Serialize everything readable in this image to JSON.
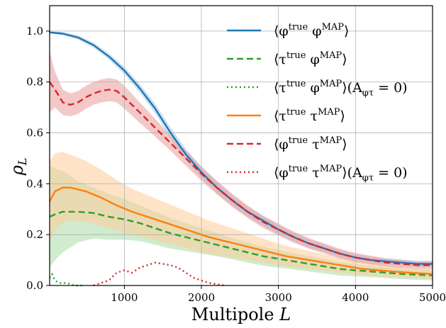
{
  "chart_data": {
    "type": "line",
    "xlabel": "Multipole L",
    "xlabel_main": "Multipole ",
    "xlabel_var": "L",
    "ylabel": "ρ_L",
    "ylabel_main": "ρ",
    "ylabel_sub": "L",
    "xlim": [
      30,
      5000
    ],
    "ylim": [
      0.0,
      1.1
    ],
    "xticks": [
      1000,
      2000,
      3000,
      4000,
      5000
    ],
    "xtick_labels": [
      "1000",
      "2000",
      "3000",
      "4000",
      "5000"
    ],
    "yticks": [
      0.0,
      0.2,
      0.4,
      0.6,
      0.8,
      1.0
    ],
    "ytick_labels": [
      "0.0",
      "0.2",
      "0.4",
      "0.6",
      "0.8",
      "1.0"
    ],
    "grid": true,
    "legend_position": "top-right",
    "series": [
      {
        "name": "⟨φ^true φ^MAP⟩",
        "color": "#1f77b4",
        "style": "solid",
        "band_color": "#a6c8e6",
        "x": [
          30,
          200,
          400,
          600,
          800,
          1000,
          1200,
          1400,
          1600,
          1800,
          2000,
          2200,
          2400,
          2600,
          2800,
          3000,
          3200,
          3400,
          3600,
          3800,
          4000,
          4200,
          4400,
          4600,
          4800,
          5000
        ],
        "y": [
          0.995,
          0.99,
          0.975,
          0.945,
          0.9,
          0.845,
          0.775,
          0.695,
          0.6,
          0.515,
          0.445,
          0.385,
          0.335,
          0.29,
          0.255,
          0.22,
          0.19,
          0.165,
          0.145,
          0.125,
          0.11,
          0.1,
          0.095,
          0.09,
          0.085,
          0.085
        ],
        "band_half_width": [
          0.004,
          0.006,
          0.008,
          0.01,
          0.012,
          0.015,
          0.017,
          0.019,
          0.021,
          0.022,
          0.022,
          0.022,
          0.021,
          0.02,
          0.019,
          0.018,
          0.017,
          0.016,
          0.015,
          0.014,
          0.013,
          0.013,
          0.012,
          0.012,
          0.012,
          0.012
        ]
      },
      {
        "name": "⟨τ^true φ^MAP⟩",
        "color": "#2ca02c",
        "style": "dashed",
        "band_color": "#a8dda8",
        "x": [
          30,
          100,
          200,
          400,
          600,
          800,
          1000,
          1200,
          1400,
          1600,
          1800,
          2000,
          2200,
          2400,
          2600,
          2800,
          3000,
          3200,
          3400,
          3600,
          3800,
          4000,
          4200,
          4400,
          4600,
          4800,
          5000
        ],
        "y": [
          0.27,
          0.28,
          0.29,
          0.29,
          0.285,
          0.27,
          0.26,
          0.245,
          0.225,
          0.205,
          0.19,
          0.175,
          0.16,
          0.145,
          0.13,
          0.115,
          0.105,
          0.095,
          0.085,
          0.075,
          0.065,
          0.06,
          0.055,
          0.05,
          0.045,
          0.042,
          0.04
        ],
        "band_half_width": [
          0.2,
          0.18,
          0.16,
          0.12,
          0.1,
          0.09,
          0.08,
          0.07,
          0.065,
          0.06,
          0.055,
          0.05,
          0.045,
          0.042,
          0.04,
          0.037,
          0.035,
          0.032,
          0.03,
          0.028,
          0.026,
          0.024,
          0.022,
          0.021,
          0.02,
          0.02,
          0.02
        ]
      },
      {
        "name": "⟨τ^true φ^MAP⟩(A_φτ = 0)",
        "color": "#2ca02c",
        "style": "dotted",
        "band_color": "none",
        "x": [
          30,
          60,
          100,
          150,
          250,
          350,
          450
        ],
        "y": [
          0.03,
          0.045,
          0.02,
          0.01,
          0.01,
          0.0,
          0.0
        ],
        "band_half_width": []
      },
      {
        "name": "⟨τ^true τ^MAP⟩",
        "color": "#ff7f0e",
        "style": "solid",
        "band_color": "#ffcc99",
        "x": [
          30,
          100,
          200,
          300,
          500,
          700,
          900,
          1100,
          1300,
          1500,
          1700,
          1900,
          2100,
          2300,
          2500,
          2700,
          2900,
          3100,
          3300,
          3500,
          3700,
          3900,
          4100,
          4300,
          4500,
          4700,
          5000
        ],
        "y": [
          0.33,
          0.37,
          0.385,
          0.385,
          0.37,
          0.345,
          0.315,
          0.29,
          0.27,
          0.25,
          0.23,
          0.21,
          0.19,
          0.175,
          0.16,
          0.145,
          0.13,
          0.115,
          0.105,
          0.095,
          0.085,
          0.075,
          0.065,
          0.06,
          0.055,
          0.05,
          0.045
        ],
        "band_half_width": [
          0.16,
          0.15,
          0.14,
          0.13,
          0.12,
          0.11,
          0.1,
          0.09,
          0.085,
          0.08,
          0.075,
          0.07,
          0.065,
          0.06,
          0.055,
          0.05,
          0.045,
          0.04,
          0.037,
          0.034,
          0.031,
          0.028,
          0.026,
          0.024,
          0.022,
          0.02,
          0.02
        ]
      },
      {
        "name": "⟨φ^true τ^MAP⟩",
        "color": "#d62728",
        "style": "dashed",
        "band_color": "#e99a9b",
        "x": [
          30,
          100,
          200,
          300,
          400,
          500,
          600,
          700,
          800,
          900,
          1000,
          1200,
          1400,
          1600,
          1800,
          2000,
          2200,
          2400,
          2600,
          2800,
          3000,
          3200,
          3400,
          3600,
          3800,
          4000,
          4200,
          4400,
          4600,
          4800,
          5000
        ],
        "y": [
          0.8,
          0.77,
          0.72,
          0.71,
          0.72,
          0.74,
          0.755,
          0.765,
          0.77,
          0.765,
          0.74,
          0.68,
          0.62,
          0.56,
          0.5,
          0.44,
          0.385,
          0.335,
          0.29,
          0.25,
          0.22,
          0.19,
          0.165,
          0.145,
          0.125,
          0.11,
          0.1,
          0.09,
          0.085,
          0.08,
          0.08
        ],
        "band_half_width": [
          0.12,
          0.07,
          0.05,
          0.045,
          0.045,
          0.045,
          0.045,
          0.045,
          0.045,
          0.045,
          0.045,
          0.04,
          0.035,
          0.03,
          0.03,
          0.028,
          0.027,
          0.026,
          0.025,
          0.024,
          0.023,
          0.022,
          0.021,
          0.02,
          0.019,
          0.018,
          0.017,
          0.016,
          0.016,
          0.015,
          0.015
        ]
      },
      {
        "name": "⟨φ^true τ^MAP⟩(A_φτ = 0)",
        "color": "#d62728",
        "style": "dotted",
        "band_color": "none",
        "x": [
          600,
          800,
          900,
          1000,
          1100,
          1200,
          1300,
          1400,
          1500,
          1600,
          1700,
          1800,
          1900,
          2000,
          2100,
          2200,
          2300
        ],
        "y": [
          0.0,
          0.02,
          0.05,
          0.06,
          0.05,
          0.07,
          0.08,
          0.09,
          0.085,
          0.08,
          0.07,
          0.05,
          0.03,
          0.02,
          0.01,
          0.005,
          0.0
        ],
        "band_half_width": []
      }
    ]
  }
}
